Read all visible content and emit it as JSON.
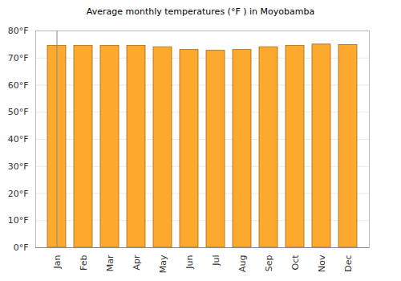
{
  "chart_data": {
    "type": "bar",
    "title": "Average monthly temperatures (°F ) in Moyobamba",
    "categories": [
      "Jan",
      "Feb",
      "Mar",
      "Apr",
      "May",
      "Jun",
      "Jul",
      "Aug",
      "Sep",
      "Oct",
      "Nov",
      "Dec"
    ],
    "values": [
      74.5,
      74.5,
      74.5,
      74.5,
      74,
      73,
      72.7,
      73,
      74,
      74.5,
      75,
      74.8
    ],
    "color": "#fca92e",
    "ylim": [
      0,
      80
    ],
    "yticks": [
      {
        "value": 0,
        "label": "0°F"
      },
      {
        "value": 10,
        "label": "10°F"
      },
      {
        "value": 20,
        "label": "20°F"
      },
      {
        "value": 30,
        "label": "30°F"
      },
      {
        "value": 40,
        "label": "40°F"
      },
      {
        "value": 50,
        "label": "50°F"
      },
      {
        "value": 60,
        "label": "60°F"
      },
      {
        "value": 70,
        "label": "70°F"
      },
      {
        "value": 80,
        "label": "80°F"
      }
    ],
    "grid": true
  }
}
